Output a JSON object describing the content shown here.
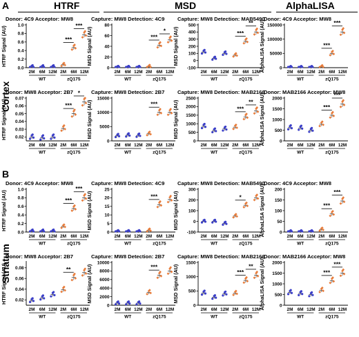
{
  "header": {
    "panel_a": "A",
    "panel_b": "B",
    "groups": [
      "HTRF",
      "MSD",
      "AlphaLISA"
    ],
    "row_labels": [
      "Cortex",
      "Striatum"
    ]
  },
  "colors": {
    "wt": "#3b3fc8",
    "zq": "#e87c3a",
    "err": "#555555"
  },
  "group_labels": {
    "wt": "WT",
    "zq": "zQ175",
    "ticks": [
      "2M",
      "6M",
      "12M",
      "2M",
      "6M",
      "12M"
    ]
  },
  "chart_data": [
    {
      "type": "scatter",
      "title": "Donor: 4C9 Acceptor: MW8",
      "ylabel": "HTRF Signal (AU)",
      "ylim": [
        0,
        1.0
      ],
      "yticks": [
        "0.0",
        "0.2",
        "0.4",
        "0.6",
        "0.8",
        "1.0"
      ],
      "yvals": [
        0,
        0.2,
        0.4,
        0.6,
        0.8,
        1.0
      ],
      "means": [
        0.02,
        0.02,
        0.02,
        0.07,
        0.47,
        0.77
      ],
      "sig": [
        {
          "a": 3,
          "b": 4,
          "label": "***"
        },
        {
          "a": 4,
          "b": 5,
          "label": "***"
        }
      ]
    },
    {
      "type": "scatter",
      "title": "Capture: MW8 Detection: 4C9",
      "ylabel": "MSD Signal (AU)",
      "ylim": [
        0,
        80
      ],
      "yticks": [
        "0",
        "20",
        "40",
        "60",
        "80"
      ],
      "yvals": [
        0,
        20,
        40,
        60,
        80
      ],
      "means": [
        0.5,
        0.5,
        0.5,
        2,
        42,
        52
      ],
      "sig": [
        {
          "a": 3,
          "b": 4,
          "label": "***"
        },
        {
          "a": 4,
          "b": 5,
          "label": "*"
        }
      ]
    },
    {
      "type": "scatter",
      "title": "Capture: MW8 Detection: MAB5490",
      "ylabel": "MSD Signal (AU)",
      "ylim": [
        -100,
        500
      ],
      "yticks": [
        "-100",
        "0",
        "100",
        "200",
        "300",
        "400",
        "500"
      ],
      "yvals": [
        -100,
        0,
        100,
        200,
        300,
        400,
        500
      ],
      "means": [
        120,
        30,
        100,
        75,
        270,
        400
      ],
      "sig": [
        {
          "a": 3,
          "b": 4,
          "label": "***"
        },
        {
          "a": 4,
          "b": 5,
          "label": "**"
        }
      ]
    },
    {
      "type": "scatter",
      "title": "Donor: 4C9 Acceptor: MW8",
      "ylabel": "AlphaLISA Signal (AU)",
      "ylim": [
        0,
        150000
      ],
      "yticks": [
        "0",
        "50000",
        "100000",
        "150000"
      ],
      "yvals": [
        0,
        50000,
        100000,
        150000
      ],
      "means": [
        500,
        500,
        500,
        3000,
        50000,
        125000
      ],
      "sig": [
        {
          "a": 3,
          "b": 4,
          "label": "***"
        },
        {
          "a": 4,
          "b": 5,
          "label": "***"
        }
      ]
    },
    {
      "type": "scatter",
      "title": "Donor: MW8 Acceptor: 2B7",
      "ylabel": "HTRF Signal (AU)",
      "ylim": [
        0.015,
        0.07
      ],
      "yticks": [
        "0.02",
        "0.03",
        "0.04",
        "0.05",
        "0.06",
        "0.07"
      ],
      "yvals": [
        0.02,
        0.03,
        0.04,
        0.05,
        0.06,
        0.07
      ],
      "means": [
        0.02,
        0.019,
        0.02,
        0.031,
        0.05,
        0.065
      ],
      "sig": [
        {
          "a": 3,
          "b": 4,
          "label": "***"
        },
        {
          "a": 4,
          "b": 5,
          "label": "*"
        }
      ]
    },
    {
      "type": "scatter",
      "title": "Capture: MW8 Detection: 2B7",
      "ylabel": "MSD Signal (AU)",
      "ylim": [
        0,
        15000
      ],
      "yticks": [
        "0",
        "5000",
        "10000",
        "15000"
      ],
      "yvals": [
        0,
        5000,
        10000,
        15000
      ],
      "means": [
        1800,
        2000,
        1900,
        2500,
        10000,
        10000
      ],
      "sig": [
        {
          "a": 3,
          "b": 4,
          "label": "***"
        }
      ]
    },
    {
      "type": "scatter",
      "title": "Capture: MW8 Detection: MAB2166",
      "ylabel": "MSD Signal (AU)",
      "ylim": [
        0,
        2500
      ],
      "yticks": [
        "0",
        "500",
        "1000",
        "1500",
        "2000",
        "2500"
      ],
      "yvals": [
        0,
        500,
        1000,
        1500,
        2000,
        2500
      ],
      "means": [
        850,
        600,
        700,
        800,
        1400,
        1750
      ],
      "sig": [
        {
          "a": 3,
          "b": 4,
          "label": "***"
        },
        {
          "a": 4,
          "b": 5,
          "label": "**"
        }
      ]
    },
    {
      "type": "scatter",
      "title": "Donor: MAB2166 Acceptor: MW8",
      "ylabel": "AlphaLISA Signal (AU)",
      "ylim": [
        0,
        2000
      ],
      "yticks": [
        "0",
        "500",
        "1000",
        "1500",
        "2000"
      ],
      "yvals": [
        0,
        500,
        1000,
        1500,
        2000
      ],
      "means": [
        620,
        600,
        500,
        780,
        1200,
        1720
      ],
      "sig": [
        {
          "a": 3,
          "b": 4,
          "label": "***"
        },
        {
          "a": 4,
          "b": 5,
          "label": "***"
        }
      ]
    },
    {
      "type": "scatter",
      "title": "Donor: 4C9 Acceptor: MW8",
      "ylabel": "HTRF Signal (AU)",
      "ylim": [
        0,
        1.0
      ],
      "yticks": [
        "0.0",
        "0.2",
        "0.4",
        "0.6",
        "0.8",
        "1.0"
      ],
      "yvals": [
        0,
        0.2,
        0.4,
        0.6,
        0.8,
        1.0
      ],
      "means": [
        0.02,
        0.02,
        0.02,
        0.13,
        0.55,
        0.8
      ],
      "sig": [
        {
          "a": 3,
          "b": 4,
          "label": "***"
        },
        {
          "a": 4,
          "b": 5,
          "label": "***"
        }
      ]
    },
    {
      "type": "scatter",
      "title": "Capture: MW8 Detection: 4C9",
      "ylabel": "MSD Signal (AU)",
      "ylim": [
        0,
        25
      ],
      "yticks": [
        "0",
        "5",
        "10",
        "15",
        "20",
        "25"
      ],
      "yvals": [
        0,
        5,
        10,
        15,
        20,
        25
      ],
      "means": [
        0.2,
        0.2,
        0.2,
        1,
        16,
        19
      ],
      "sig": [
        {
          "a": 3,
          "b": 4,
          "label": "***"
        }
      ]
    },
    {
      "type": "scatter",
      "title": "Capture: MW8 Detection: MAB5490",
      "ylabel": "MSD Signal (AU)",
      "ylim": [
        -100,
        300
      ],
      "yticks": [
        "-100",
        "0",
        "100",
        "200",
        "300"
      ],
      "yvals": [
        -100,
        0,
        100,
        200,
        300
      ],
      "means": [
        0,
        0,
        -20,
        50,
        150,
        220
      ],
      "sig": [
        {
          "a": 3,
          "b": 4,
          "label": "*"
        }
      ]
    },
    {
      "type": "scatter",
      "title": "Donor: 4C9 Acceptor: MW8",
      "ylabel": "AlphaLISA Signal (AU)",
      "ylim": [
        0,
        200
      ],
      "yticks": [
        "0",
        "50",
        "100",
        "150",
        "200"
      ],
      "yvals": [
        0,
        50,
        100,
        150,
        200
      ],
      "means": [
        1,
        1,
        1,
        12,
        85,
        145
      ],
      "sig": [
        {
          "a": 3,
          "b": 4,
          "label": "***"
        },
        {
          "a": 4,
          "b": 5,
          "label": "***"
        }
      ]
    },
    {
      "type": "scatter",
      "title": "Donor: MW8 Acceptor: 2B7",
      "ylabel": "HTRF Signal (AU)",
      "ylim": [
        0.01,
        0.09
      ],
      "yticks": [
        "0.02",
        "0.04",
        "0.06",
        "0.08"
      ],
      "yvals": [
        0.02,
        0.04,
        0.06,
        0.08
      ],
      "means": [
        0.019,
        0.024,
        0.03,
        0.039,
        0.062,
        0.071
      ],
      "sig": [
        {
          "a": 3,
          "b": 4,
          "label": "**"
        }
      ]
    },
    {
      "type": "scatter",
      "title": "Capture: MW8 Detection: 2B7",
      "ylabel": "MSD Signal (AU)",
      "ylim": [
        0,
        10000
      ],
      "yticks": [
        "0",
        "2000",
        "4000",
        "6000",
        "8000",
        "10000"
      ],
      "yvals": [
        0,
        2000,
        4000,
        6000,
        8000,
        10000
      ],
      "means": [
        500,
        500,
        500,
        3000,
        7000,
        8000
      ],
      "sig": [
        {
          "a": 3,
          "b": 4,
          "label": "***"
        }
      ]
    },
    {
      "type": "scatter",
      "title": "Capture: MW8 Detection: MAB2166",
      "ylabel": "MSD Signal (AU)",
      "ylim": [
        0,
        1500
      ],
      "yticks": [
        "0",
        "500",
        "1000",
        "1500"
      ],
      "yvals": [
        0,
        500,
        1000,
        1500
      ],
      "means": [
        430,
        280,
        400,
        420,
        870,
        1050
      ],
      "sig": [
        {
          "a": 3,
          "b": 4,
          "label": "***"
        },
        {
          "a": 4,
          "b": 5,
          "label": "**"
        }
      ]
    },
    {
      "type": "scatter",
      "title": "Donor: MAB2166 Acceptor: MW8",
      "ylabel": "AlphaLISA Signal (AU)",
      "ylim": [
        0,
        2000
      ],
      "yticks": [
        "0",
        "500",
        "1000",
        "1500",
        "2000"
      ],
      "yvals": [
        0,
        500,
        1000,
        1500,
        2000
      ],
      "means": [
        600,
        550,
        500,
        700,
        1150,
        1500
      ],
      "sig": [
        {
          "a": 3,
          "b": 4,
          "label": "***"
        },
        {
          "a": 4,
          "b": 5,
          "label": "***"
        }
      ]
    }
  ]
}
